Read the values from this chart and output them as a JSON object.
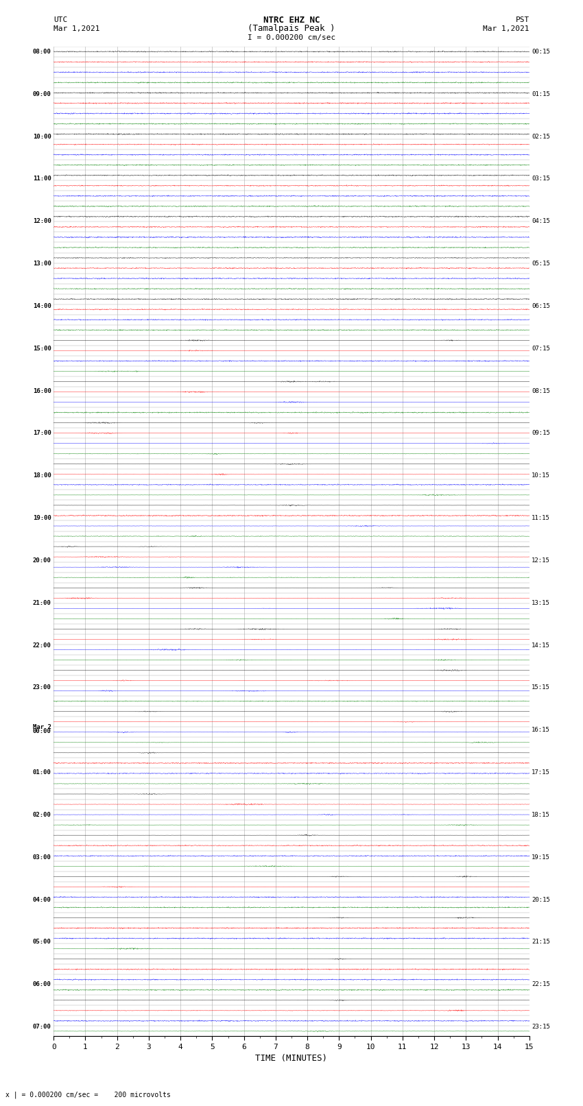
{
  "title_line1": "NTRC EHZ NC",
  "title_line2": "(Tamalpais Peak )",
  "title_line3": "I = 0.000200 cm/sec",
  "left_header_line1": "UTC",
  "left_header_line2": "Mar 1,2021",
  "right_header_line1": "PST",
  "right_header_line2": "Mar 1,2021",
  "xlabel": "TIME (MINUTES)",
  "footer": "x | = 0.000200 cm/sec =    200 microvolts",
  "xlim": [
    0,
    15
  ],
  "xticks": [
    0,
    1,
    2,
    3,
    4,
    5,
    6,
    7,
    8,
    9,
    10,
    11,
    12,
    13,
    14,
    15
  ],
  "colors": [
    "black",
    "red",
    "blue",
    "green"
  ],
  "num_rows": 96,
  "left_labels_hourly": {
    "0": "08:00",
    "4": "09:00",
    "8": "10:00",
    "12": "11:00",
    "16": "12:00",
    "20": "13:00",
    "24": "14:00",
    "28": "15:00",
    "32": "16:00",
    "36": "17:00",
    "40": "18:00",
    "44": "19:00",
    "48": "20:00",
    "52": "21:00",
    "56": "22:00",
    "60": "23:00",
    "64": "Mar 2\n00:00",
    "68": "01:00",
    "72": "02:00",
    "76": "03:00",
    "80": "04:00",
    "84": "05:00",
    "88": "06:00",
    "92": "07:00"
  },
  "right_labels_hourly": {
    "0": "00:15",
    "4": "01:15",
    "8": "02:15",
    "12": "03:15",
    "16": "04:15",
    "20": "05:15",
    "24": "06:15",
    "28": "07:15",
    "32": "08:15",
    "36": "09:15",
    "40": "10:15",
    "44": "11:15",
    "48": "12:15",
    "52": "13:15",
    "56": "14:15",
    "60": "15:15",
    "64": "16:15",
    "68": "17:15",
    "72": "18:15",
    "76": "19:15",
    "80": "20:15",
    "84": "21:15",
    "88": "22:15",
    "92": "23:15"
  },
  "background_color": "white",
  "grid_color": "#aaaaaa",
  "noise_scale": 0.04,
  "figsize": [
    8.5,
    16.13
  ]
}
